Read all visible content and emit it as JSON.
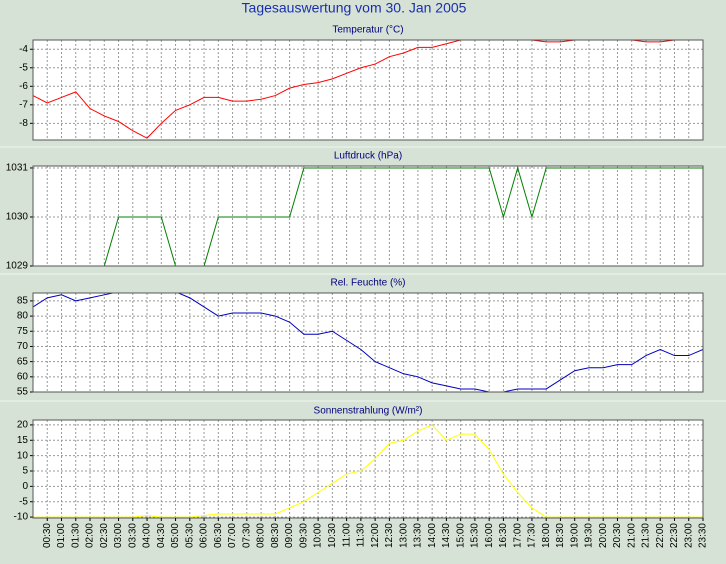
{
  "title": "Tagesauswertung vom 30. Jan 2005",
  "chart_data": [
    {
      "type": "line",
      "title": "Temperatur (°C)",
      "color": "#ff0000",
      "values": [
        -6.5,
        -6.9,
        -6.6,
        -6.3,
        -7.2,
        -7.6,
        -7.9,
        -8.4,
        -8.8,
        -8.0,
        -7.3,
        -7.0,
        -6.6,
        -6.6,
        -6.8,
        -6.8,
        -6.7,
        -6.5,
        -6.1,
        -5.9,
        -5.8,
        -5.6,
        -5.3,
        -5.0,
        -4.8,
        -4.4,
        -4.2,
        -3.9,
        -3.9,
        -3.7,
        -3.5,
        -3.5,
        -3.5,
        -3.5,
        -3.5,
        -3.5,
        -3.6,
        -3.6,
        -3.5,
        -3.5,
        -3.5,
        -3.5,
        -3.5,
        -3.6,
        -3.6,
        -3.5,
        -3.5,
        -3.5
      ],
      "ylim": [
        -8.9,
        -3.5
      ],
      "yticks": [
        -8,
        -7,
        -6,
        -5,
        -4
      ],
      "grid": true
    },
    {
      "type": "line",
      "title": "Luftdruck (hPa)",
      "color": "#008000",
      "values": [
        1029,
        1029,
        1029,
        1029,
        1029,
        1029,
        1030,
        1030,
        1030,
        1030,
        1029,
        1029,
        1029,
        1030,
        1030,
        1030,
        1030,
        1030,
        1030,
        1031,
        1031,
        1031,
        1031,
        1031,
        1031,
        1031,
        1031,
        1031,
        1031,
        1031,
        1031,
        1031,
        1031,
        1030,
        1031,
        1030,
        1031,
        1031,
        1031,
        1031,
        1031,
        1031,
        1031,
        1031,
        1031,
        1031,
        1031,
        1031
      ],
      "ylim": [
        1029,
        1031.04
      ],
      "yticks": [
        1029,
        1030,
        1031
      ],
      "grid": true
    },
    {
      "type": "line",
      "title": "Rel. Feuchte (%)",
      "color": "#0000c0",
      "values": [
        83,
        86,
        87,
        85,
        86,
        87,
        88,
        88,
        88,
        88,
        88,
        86,
        83,
        80,
        81,
        81,
        81,
        80,
        78,
        74,
        74,
        75,
        72,
        69,
        65,
        63,
        61,
        60,
        58,
        57,
        56,
        56,
        55,
        55,
        56,
        56,
        56,
        59,
        62,
        63,
        63,
        64,
        64,
        67,
        69,
        67,
        67,
        69
      ],
      "ylim": [
        55,
        87.6
      ],
      "yticks": [
        55,
        60,
        65,
        70,
        75,
        80,
        85
      ],
      "grid": true
    },
    {
      "type": "line",
      "title": "Sonnenstrahlung (W/m²)",
      "color": "#ffff00",
      "categories": [
        null,
        "00:30",
        "01:00",
        "01:30",
        "02:00",
        "02:30",
        "03:00",
        "03:30",
        "04:00",
        "04:30",
        "05:00",
        "05:30",
        "06:00",
        "06:30",
        "07:00",
        "07:30",
        "08:00",
        "08:30",
        "09:00",
        "09:30",
        "10:00",
        "10:30",
        "11:00",
        "11:30",
        "12:00",
        "12:30",
        "13:00",
        "13:30",
        "14:00",
        "14:30",
        "15:00",
        "15:30",
        "16:00",
        "16:30",
        "17:00",
        "17:30",
        "18:00",
        "18:30",
        "19:00",
        "19:30",
        "20:00",
        "20:30",
        "21:00",
        "21:30",
        "22:00",
        "22:30",
        "23:00",
        "23:30"
      ],
      "values": [
        -10,
        -10,
        -10,
        -10,
        -10,
        -10,
        -10,
        -10,
        -9.5,
        -10,
        -10,
        -10,
        -9.5,
        -9,
        -9,
        -9,
        -9,
        -9,
        -7,
        -5,
        -2,
        1,
        4,
        5,
        9,
        14,
        15,
        18,
        20,
        15,
        17,
        17,
        12,
        4,
        -2,
        -7,
        -10,
        -10,
        -10,
        -10,
        -10,
        -10,
        -10,
        -10,
        -10,
        -10,
        -10,
        -10
      ],
      "ylim": [
        -10.3,
        21.6
      ],
      "yticks": [
        -10,
        -5,
        0,
        5,
        10,
        15,
        20
      ],
      "grid": true
    }
  ]
}
